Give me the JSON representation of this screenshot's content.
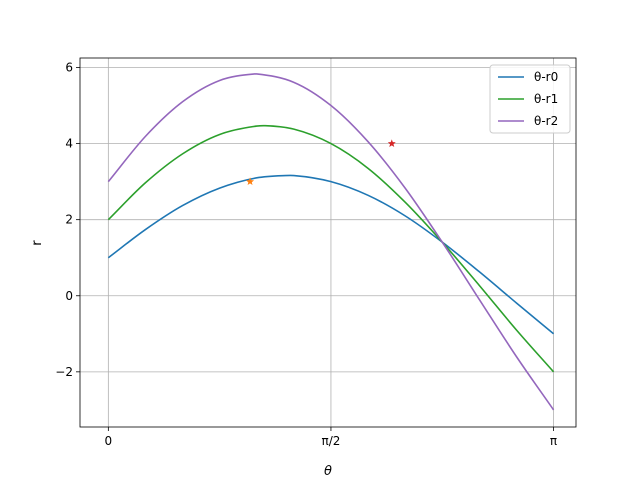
{
  "chart_data": {
    "type": "line",
    "title": "",
    "xlabel": "θ",
    "ylabel": "r",
    "xlim": [
      -0.2,
      3.3
    ],
    "ylim": [
      -3.45,
      6.25
    ],
    "x_ticks": [
      {
        "value": 0,
        "label": "0"
      },
      {
        "value": 1.5708,
        "label": "π/2"
      },
      {
        "value": 3.1416,
        "label": "π"
      }
    ],
    "y_ticks": [
      {
        "value": -2,
        "label": "−2"
      },
      {
        "value": 0,
        "label": "0"
      },
      {
        "value": 2,
        "label": "2"
      },
      {
        "value": 4,
        "label": "4"
      },
      {
        "value": 6,
        "label": "6"
      }
    ],
    "grid": true,
    "legend_position": "top-right",
    "series": [
      {
        "name": "θ-r0",
        "color": "#1f77b4",
        "formula": "r = 1·cos θ + 3·sin θ",
        "x": [
          0,
          0.2618,
          0.5236,
          0.7854,
          1.0472,
          1.249,
          1.309,
          1.5708,
          1.8326,
          2.0944,
          2.3562,
          2.618,
          2.8798,
          3.1416
        ],
        "y": [
          1.0,
          1.74,
          2.37,
          2.83,
          3.1,
          3.16,
          3.16,
          3.0,
          2.64,
          2.1,
          1.41,
          0.63,
          -0.19,
          -1.0
        ]
      },
      {
        "name": "θ-r1",
        "color": "#2ca02c",
        "formula": "r = 2·cos θ + 4·sin θ",
        "x": [
          0,
          0.2618,
          0.5236,
          0.7854,
          1.0472,
          1.1071,
          1.309,
          1.5708,
          1.8326,
          2.0944,
          2.3562,
          2.618,
          2.8798,
          3.1416
        ],
        "y": [
          2.0,
          2.97,
          3.73,
          4.24,
          4.46,
          4.47,
          4.38,
          4.0,
          3.35,
          2.46,
          1.41,
          0.27,
          -0.9,
          -2.0
        ]
      },
      {
        "name": "θ-r2",
        "color": "#9467bd",
        "formula": "r = 3·cos θ + 5·sin θ",
        "x": [
          0,
          0.2618,
          0.5236,
          0.7854,
          1.0304,
          1.0472,
          1.309,
          1.5708,
          1.8326,
          2.0944,
          2.3562,
          2.618,
          2.8798,
          3.1416
        ],
        "y": [
          3.0,
          4.19,
          5.1,
          5.66,
          5.83,
          5.83,
          5.61,
          5.0,
          4.05,
          2.83,
          1.41,
          -0.1,
          -1.6,
          -3.0
        ]
      }
    ],
    "markers": [
      {
        "x": 1.0,
        "y": 3.0,
        "color": "#ff7f0e",
        "shape": "star"
      },
      {
        "x": 2.0,
        "y": 4.0,
        "color": "#d62728",
        "shape": "star"
      }
    ]
  }
}
